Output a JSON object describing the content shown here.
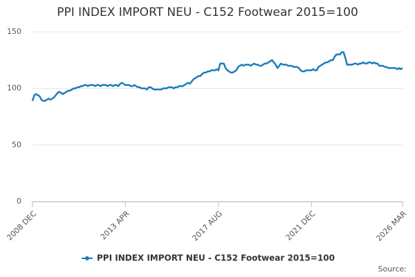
{
  "chart_data": {
    "type": "line",
    "title": "PPI INDEX IMPORT NEU - C152 Footwear 2015=100",
    "categories": [
      "2008 DEC",
      null,
      null,
      null,
      null,
      null,
      null,
      null,
      null,
      null,
      null,
      null,
      null,
      null,
      null,
      null,
      null,
      null,
      null,
      null,
      null,
      null,
      null,
      null,
      null,
      null,
      null,
      null,
      null,
      null,
      null,
      null,
      null,
      null,
      null,
      null,
      null,
      null,
      null,
      null,
      null,
      null,
      null,
      null,
      null,
      null,
      null,
      null,
      null,
      null,
      null,
      null,
      "2013 APR",
      null,
      null,
      null,
      null,
      null,
      null,
      null,
      null,
      null,
      null,
      null,
      null,
      null,
      null,
      null,
      null,
      null,
      null,
      null,
      null,
      null,
      null,
      null,
      null,
      null,
      null,
      null,
      null,
      null,
      null,
      null,
      null,
      null,
      null,
      null,
      null,
      null,
      null,
      null,
      null,
      null,
      null,
      null,
      null,
      null,
      null,
      null,
      null,
      null,
      null,
      null,
      "2017 AUG",
      null,
      null,
      null,
      null,
      null,
      null,
      null,
      null,
      null,
      null,
      null,
      null,
      null,
      null,
      null,
      null,
      null,
      null,
      null,
      null,
      null,
      null,
      null,
      null,
      null,
      null,
      null,
      null,
      null,
      null,
      null,
      null,
      null,
      null,
      null,
      null,
      null,
      null,
      null,
      null,
      null,
      null,
      null,
      null,
      null,
      null,
      null,
      null,
      null,
      null,
      null,
      "2021 DEC",
      null,
      null,
      null,
      null,
      null,
      null,
      null,
      null,
      null,
      null,
      null,
      null,
      null,
      null,
      null,
      null,
      null,
      null,
      null,
      null,
      null,
      null,
      null,
      null,
      null,
      null,
      null,
      null,
      null,
      null,
      null,
      null,
      null,
      null,
      null,
      null,
      null,
      null,
      null,
      null,
      null,
      null,
      null,
      null,
      null,
      null,
      null,
      null,
      null,
      null,
      "2026 MAR"
    ],
    "series": [
      {
        "name": "PPI INDEX IMPORT NEU - C152 Footwear 2015=100",
        "color": "#1a7dbb",
        "values": [
          89,
          94,
          95,
          94,
          93,
          90,
          89,
          89,
          90,
          91,
          90,
          91,
          92,
          94,
          96,
          97,
          96,
          95,
          96,
          97,
          98,
          98,
          99,
          100,
          100,
          101,
          101,
          102,
          102,
          103,
          103,
          102,
          103,
          103,
          103,
          102,
          103,
          103,
          102,
          103,
          103,
          103,
          102,
          103,
          103,
          102,
          103,
          103,
          102,
          104,
          105,
          104,
          103,
          103,
          103,
          102,
          102,
          103,
          102,
          101,
          101,
          100,
          100,
          100,
          99,
          101,
          101,
          100,
          99,
          99,
          99,
          99,
          99,
          100,
          100,
          100,
          101,
          101,
          101,
          100,
          101,
          101,
          102,
          102,
          102,
          103,
          104,
          105,
          104,
          106,
          108,
          109,
          110,
          111,
          111,
          113,
          114,
          114,
          115,
          115,
          116,
          116,
          116,
          117,
          116,
          122,
          122,
          122,
          118,
          116,
          115,
          114,
          114,
          115,
          116,
          119,
          120,
          121,
          120,
          121,
          121,
          121,
          120,
          121,
          122,
          121,
          121,
          120,
          120,
          121,
          122,
          122,
          123,
          124,
          125,
          123,
          121,
          118,
          120,
          122,
          121,
          121,
          121,
          120,
          120,
          120,
          119,
          119,
          119,
          118,
          116,
          115,
          115,
          116,
          116,
          116,
          116,
          117,
          116,
          116,
          119,
          120,
          121,
          122,
          123,
          123,
          124,
          125,
          125,
          128,
          130,
          130,
          130,
          132,
          132,
          127,
          121,
          121,
          121,
          121,
          122,
          122,
          121,
          122,
          122,
          123,
          122,
          122,
          123,
          123,
          122,
          123,
          122,
          122,
          120,
          120,
          120,
          119,
          119,
          118,
          118,
          118,
          118,
          118,
          117,
          118,
          117,
          118
        ]
      }
    ],
    "ylim": [
      0,
      150
    ],
    "yticks": [
      0,
      50,
      100,
      150
    ],
    "grid": true,
    "legend": "bottom",
    "source": "Source:"
  }
}
